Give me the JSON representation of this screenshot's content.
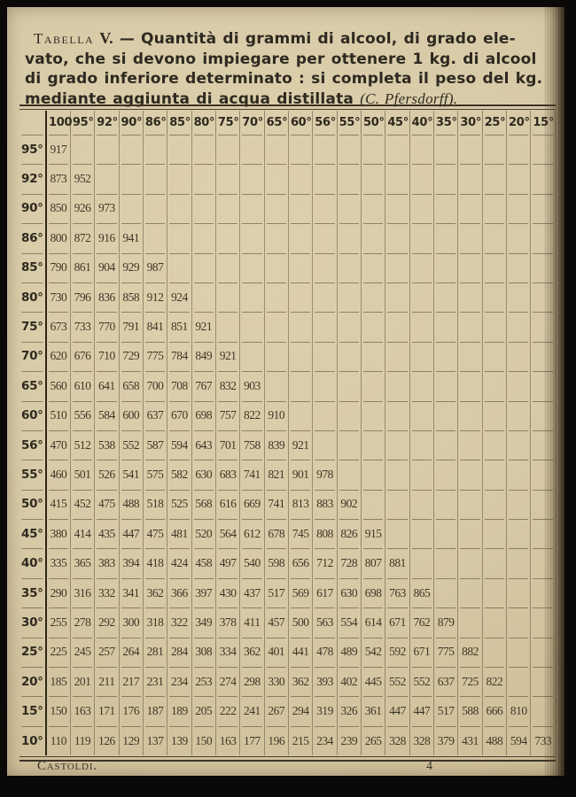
{
  "title": {
    "label": "Tabella",
    "numeral": "V.",
    "dash": "—",
    "line1_rest": "Quantità di grammi di alcool, di grado ele-",
    "line2": "vato, che si devono impiegare per ottenere 1 kg. di alcool",
    "line3": "di grado inferiore determinato : si completa il peso del kg.",
    "line4_main": "mediante aggiunta di acqua distillata",
    "line4_italic": "(C. Pfersdorff)."
  },
  "table": {
    "column_headers": [
      "100",
      "95°",
      "92°",
      "90°",
      "86°",
      "85°",
      "80°",
      "75°",
      "70°",
      "65°",
      "60°",
      "56°",
      "55°",
      "50°",
      "45°",
      "40°",
      "35°",
      "30°",
      "25°",
      "20°",
      "15°"
    ],
    "rows": [
      {
        "label": "95°",
        "values": [
          "917"
        ]
      },
      {
        "label": "92°",
        "values": [
          "873",
          "952"
        ]
      },
      {
        "label": "90°",
        "values": [
          "850",
          "926",
          "973"
        ]
      },
      {
        "label": "86°",
        "values": [
          "800",
          "872",
          "916",
          "941"
        ]
      },
      {
        "label": "85°",
        "values": [
          "790",
          "861",
          "904",
          "929",
          "987"
        ]
      },
      {
        "label": "80°",
        "values": [
          "730",
          "796",
          "836",
          "858",
          "912",
          "924"
        ]
      },
      {
        "label": "75°",
        "values": [
          "673",
          "733",
          "770",
          "791",
          "841",
          "851",
          "921"
        ]
      },
      {
        "label": "70°",
        "values": [
          "620",
          "676",
          "710",
          "729",
          "775",
          "784",
          "849",
          "921"
        ]
      },
      {
        "label": "65°",
        "values": [
          "560",
          "610",
          "641",
          "658",
          "700",
          "708",
          "767",
          "832",
          "903"
        ]
      },
      {
        "label": "60°",
        "values": [
          "510",
          "556",
          "584",
          "600",
          "637",
          "670",
          "698",
          "757",
          "822",
          "910"
        ]
      },
      {
        "label": "56°",
        "values": [
          "470",
          "512",
          "538",
          "552",
          "587",
          "594",
          "643",
          "701",
          "758",
          "839",
          "921"
        ]
      },
      {
        "label": "55°",
        "values": [
          "460",
          "501",
          "526",
          "541",
          "575",
          "582",
          "630",
          "683",
          "741",
          "821",
          "901",
          "978"
        ]
      },
      {
        "label": "50°",
        "values": [
          "415",
          "452",
          "475",
          "488",
          "518",
          "525",
          "568",
          "616",
          "669",
          "741",
          "813",
          "883",
          "902"
        ]
      },
      {
        "label": "45°",
        "values": [
          "380",
          "414",
          "435",
          "447",
          "475",
          "481",
          "520",
          "564",
          "612",
          "678",
          "745",
          "808",
          "826",
          "915"
        ]
      },
      {
        "label": "40°",
        "values": [
          "335",
          "365",
          "383",
          "394",
          "418",
          "424",
          "458",
          "497",
          "540",
          "598",
          "656",
          "712",
          "728",
          "807",
          "881"
        ]
      },
      {
        "label": "35°",
        "values": [
          "290",
          "316",
          "332",
          "341",
          "362",
          "366",
          "397",
          "430",
          "437",
          "517",
          "569",
          "617",
          "630",
          "698",
          "763",
          "865"
        ]
      },
      {
        "label": "30°",
        "values": [
          "255",
          "278",
          "292",
          "300",
          "318",
          "322",
          "349",
          "378",
          "411",
          "457",
          "500",
          "563",
          "554",
          "614",
          "671",
          "762",
          "879"
        ]
      },
      {
        "label": "25°",
        "values": [
          "225",
          "245",
          "257",
          "264",
          "281",
          "284",
          "308",
          "334",
          "362",
          "401",
          "441",
          "478",
          "489",
          "542",
          "592",
          "671",
          "775",
          "882"
        ]
      },
      {
        "label": "20°",
        "values": [
          "185",
          "201",
          "211",
          "217",
          "231",
          "234",
          "253",
          "274",
          "298",
          "330",
          "362",
          "393",
          "402",
          "445",
          "552",
          "552",
          "637",
          "725",
          "822"
        ]
      },
      {
        "label": "15°",
        "values": [
          "150",
          "163",
          "171",
          "176",
          "187",
          "189",
          "205",
          "222",
          "241",
          "267",
          "294",
          "319",
          "326",
          "361",
          "447",
          "447",
          "517",
          "588",
          "666",
          "810"
        ]
      },
      {
        "label": "10°",
        "values": [
          "110",
          "119",
          "126",
          "129",
          "137",
          "139",
          "150",
          "163",
          "177",
          "196",
          "215",
          "234",
          "239",
          "265",
          "328",
          "328",
          "379",
          "431",
          "488",
          "594",
          "733"
        ]
      }
    ]
  },
  "footer": {
    "left": "Castoldi.",
    "page_number": "4"
  },
  "colors": {
    "paper": "#d7caa7",
    "ink": "#2f2a1f",
    "frame": "#0b0907"
  }
}
